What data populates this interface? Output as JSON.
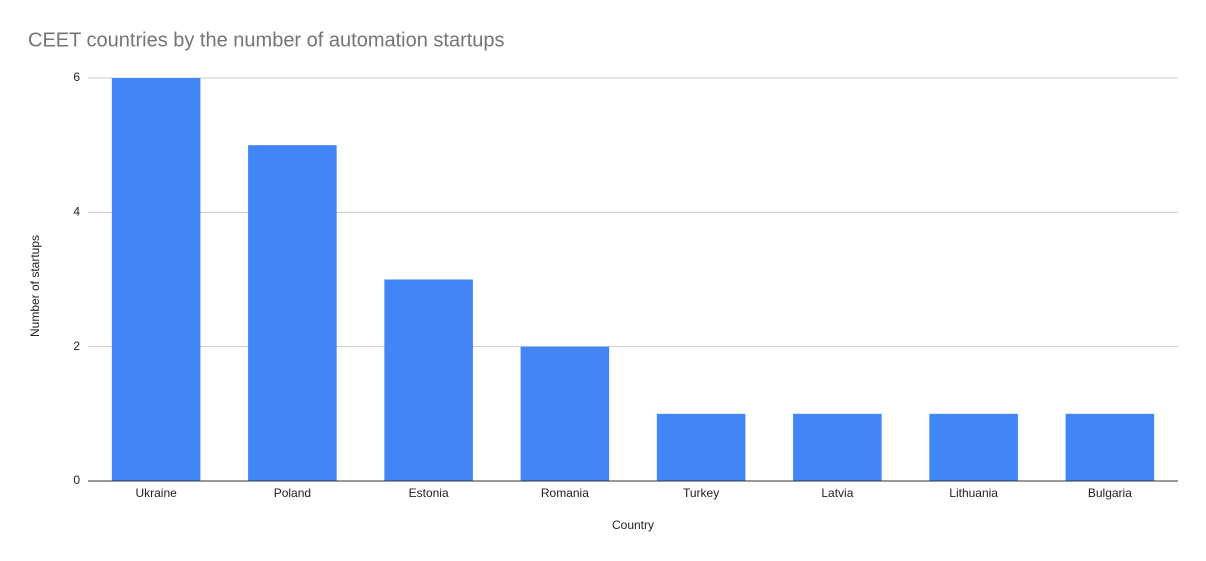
{
  "chart_data": {
    "type": "bar",
    "title": "CEET countries by the number of automation startups",
    "x_label": "Country",
    "y_label": "Number of startups",
    "categories": [
      "Ukraine",
      "Poland",
      "Estonia",
      "Romania",
      "Turkey",
      "Latvia",
      "Lithuania",
      "Bulgaria"
    ],
    "values": [
      6,
      5,
      3,
      2,
      1,
      1,
      1,
      1
    ],
    "color": "#4285f4",
    "ylim": [
      0,
      6
    ],
    "yticks": [
      0,
      2,
      4,
      6
    ],
    "grid": true
  }
}
